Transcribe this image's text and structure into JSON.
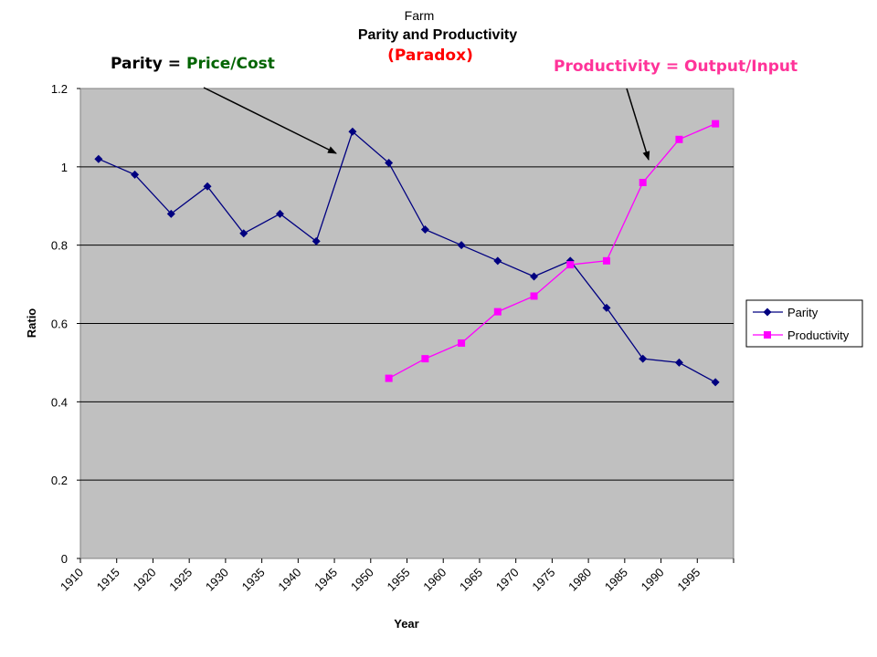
{
  "chart_data": {
    "type": "line",
    "supertitle": "Farm",
    "title": "Parity and Productivity",
    "subtitle": "(Paradox)",
    "xlabel": "Year",
    "ylabel": "Ratio",
    "categories": [
      "1910",
      "1915",
      "1920",
      "1925",
      "1930",
      "1935",
      "1940",
      "1945",
      "1950",
      "1955",
      "1960",
      "1965",
      "1970",
      "1975",
      "1980",
      "1985",
      "1990",
      "1995"
    ],
    "ylim": [
      0,
      1.2
    ],
    "yticks": [
      "0",
      "0.2",
      "0.4",
      "0.6",
      "0.8",
      "1",
      "1.2"
    ],
    "grid": true,
    "legend_position": "right",
    "series": [
      {
        "name": "Parity",
        "color": "#000080",
        "marker": "diamond",
        "values": [
          1.02,
          0.98,
          0.88,
          0.95,
          0.83,
          0.88,
          0.81,
          1.09,
          1.01,
          0.84,
          0.8,
          0.76,
          0.72,
          0.76,
          0.64,
          0.51,
          0.5,
          0.45
        ]
      },
      {
        "name": "Productivity",
        "color": "#ff00ff",
        "marker": "square",
        "values": [
          null,
          null,
          null,
          null,
          null,
          null,
          null,
          null,
          0.46,
          0.51,
          0.55,
          0.63,
          0.67,
          0.75,
          0.76,
          0.96,
          1.07,
          1.11
        ]
      }
    ],
    "annotations": {
      "parity_label": "Parity = ",
      "parity_formula": "Price/Cost",
      "parity_formula_color": "#006400",
      "productivity_label": "Productivity = Output/Input",
      "productivity_color": "#ff3399"
    }
  }
}
